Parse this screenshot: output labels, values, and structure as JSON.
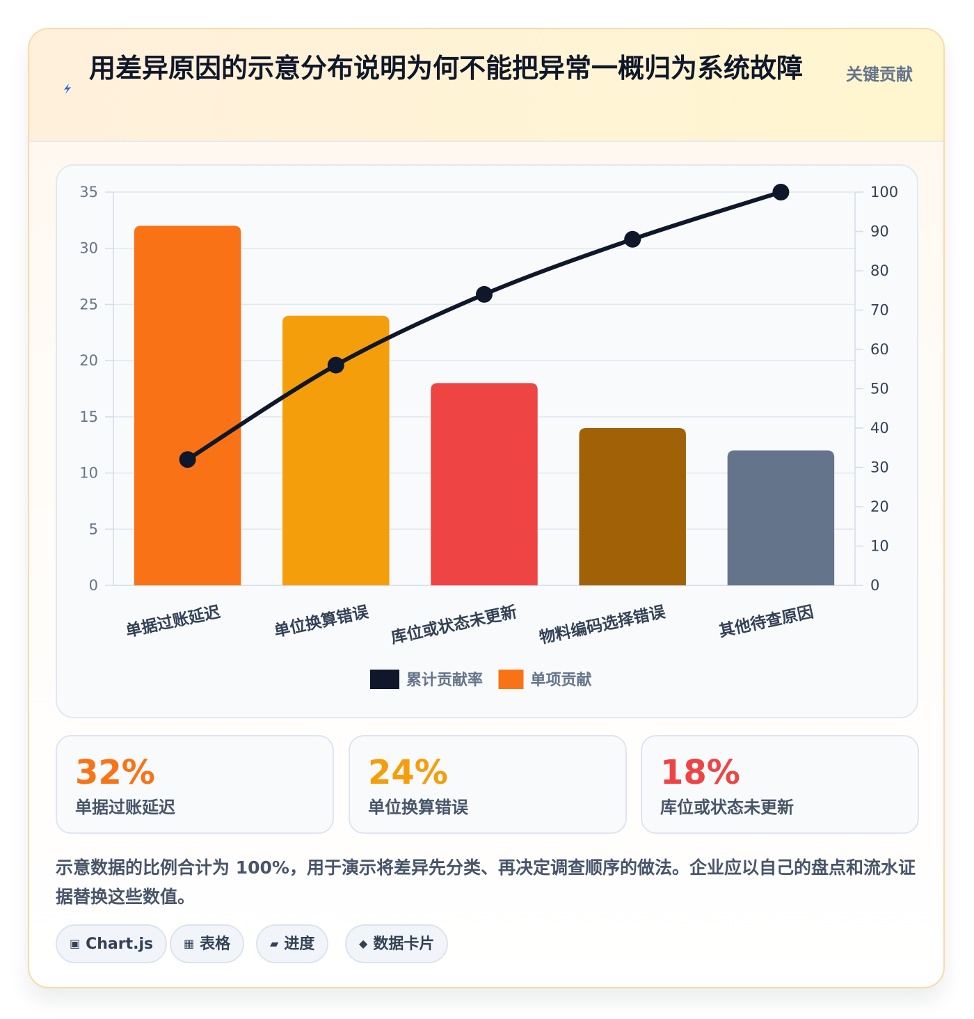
{
  "header": {
    "title": "用差异原因的示意分布说明为何不能把异常一概归为系统故障",
    "badge": "关键贡献",
    "icon": "lightning-icon"
  },
  "chart_data": {
    "type": "bar",
    "categories": [
      "单据过账延迟",
      "单位换算错误",
      "库位或状态未更新",
      "物料编码选择错误",
      "其他待查原因"
    ],
    "series": [
      {
        "name": "单项贡献",
        "type": "bar",
        "axis": "left",
        "values": [
          32,
          24,
          18,
          14,
          12
        ],
        "colors": [
          "#f97316",
          "#f59e0b",
          "#ef4444",
          "#a16207",
          "#64748b"
        ]
      },
      {
        "name": "累计贡献率",
        "type": "line",
        "axis": "right",
        "values": [
          32,
          56,
          74,
          88,
          100
        ],
        "color": "#0f172a"
      }
    ],
    "ylim": [
      0,
      35
    ],
    "yticks": [
      0,
      5,
      10,
      15,
      20,
      25,
      30,
      35
    ],
    "y2lim": [
      0,
      100
    ],
    "y2ticks": [
      0,
      10,
      20,
      30,
      40,
      50,
      60,
      70,
      80,
      90,
      100
    ],
    "legend_position": "bottom",
    "legend": [
      {
        "label": "累计贡献率",
        "color": "#0f172a"
      },
      {
        "label": "单项贡献",
        "color": "#f97316"
      }
    ],
    "grid": true
  },
  "stats": [
    {
      "value": "32%",
      "label": "单据过账延迟",
      "color": "#f97316"
    },
    {
      "value": "24%",
      "label": "单位换算错误",
      "color": "#f59e0b"
    },
    {
      "value": "18%",
      "label": "库位或状态未更新",
      "color": "#ef4444"
    }
  ],
  "note": "示意数据的比例合计为 100%，用于演示将差异先分类、再决定调查顺序的做法。企业应以自己的盘点和流水证据替换这些数值。",
  "tags": [
    {
      "icon": "▣",
      "label": "Chart.js",
      "icon_name": "chart-icon"
    },
    {
      "icon": "▦",
      "label": "表格",
      "icon_name": "table-icon"
    },
    {
      "icon": "▰",
      "label": "进度",
      "icon_name": "progress-icon"
    },
    {
      "icon": "◆",
      "label": "数据卡片",
      "icon_name": "diamond-icon"
    }
  ]
}
